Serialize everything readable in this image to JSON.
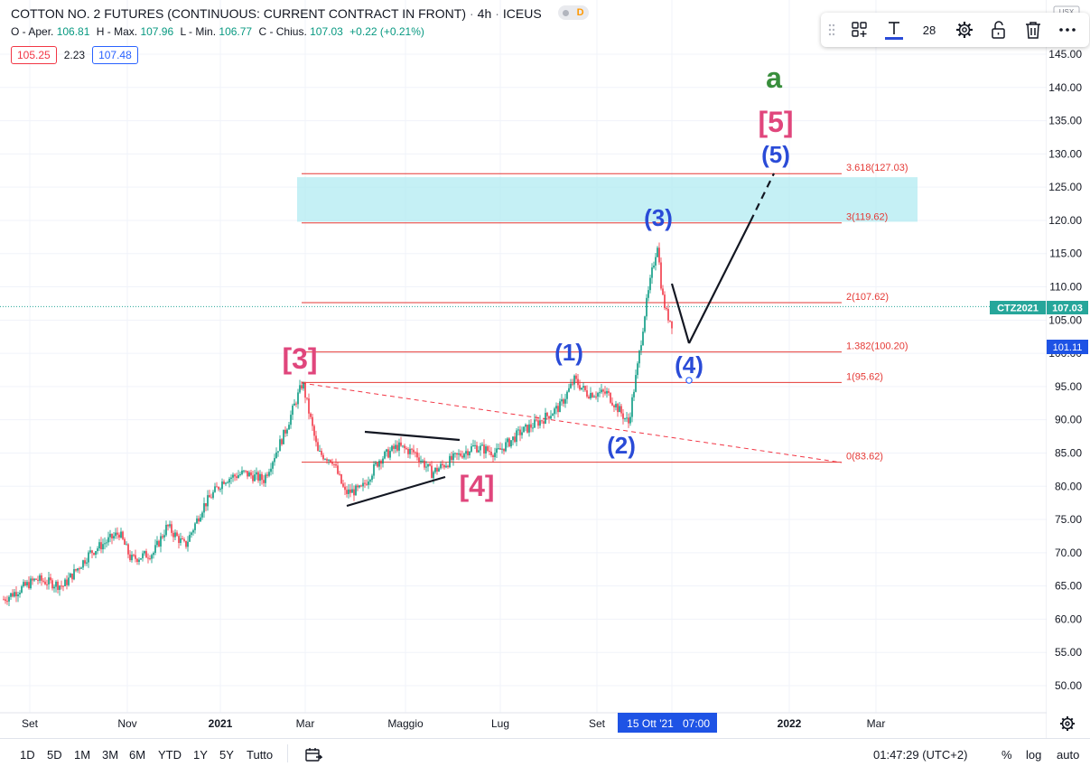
{
  "header": {
    "title": "COTTON NO. 2 FUTURES (CONTINUOUS: CURRENT CONTRACT IN FRONT)",
    "interval": "4h",
    "exchange": "ICEUS",
    "badge": "D"
  },
  "ohlc": {
    "open_label": "O - Aper.",
    "open": "106.81",
    "high_label": "H - Max.",
    "high": "107.96",
    "low_label": "L - Min.",
    "low": "106.77",
    "close_label": "C - Chius.",
    "close": "107.03",
    "change": "+0.22 (+0.21%)"
  },
  "quote": {
    "bid": "105.25",
    "spread": "2.23",
    "ask": "107.48"
  },
  "toolbar": {
    "font_size": "28"
  },
  "price_axis": {
    "currency": "USX",
    "ticks": [
      "145.00",
      "140.00",
      "135.00",
      "130.00",
      "125.00",
      "120.00",
      "115.00",
      "110.00",
      "105.00",
      "100.00",
      "95.00",
      "90.00",
      "85.00",
      "80.00",
      "75.00",
      "70.00",
      "65.00",
      "60.00",
      "55.00",
      "50.00"
    ],
    "symbol_tag": "CTZ2021",
    "last_price": "107.03",
    "crosshair_price": "101.11"
  },
  "time_axis": {
    "ticks": [
      "Set",
      "Nov",
      "2021",
      "Mar",
      "Maggio",
      "Lug",
      "Set",
      "Mar"
    ],
    "year_tick": "2022",
    "crosshair_date": "15 Ott '21",
    "crosshair_time": "07:00"
  },
  "fib_levels": [
    {
      "label": "3.618(127.03)",
      "price": 127.03
    },
    {
      "label": "3(119.62)",
      "price": 119.62
    },
    {
      "label": "2(107.62)",
      "price": 107.62
    },
    {
      "label": "1.382(100.20)",
      "price": 100.2
    },
    {
      "label": "1(95.62)",
      "price": 95.62
    },
    {
      "label": "0(83.62)",
      "price": 83.62
    }
  ],
  "wave_labels": {
    "primary_a": "a",
    "w3": "[3]",
    "w4": "[4]",
    "w5": "[5]",
    "i1": "(1)",
    "i2": "(2)",
    "i3": "(3)",
    "i4": "(4)",
    "i5": "(5)"
  },
  "colors": {
    "up": "#089981",
    "down": "#f23645",
    "fib": "#e53935",
    "wave_primary": "#e0467c",
    "wave_intermediate": "#2a4bd7",
    "wave_a": "#388e3c",
    "zone": "#b2ebf2",
    "last_price": "#26a69a",
    "accent": "#2962ff"
  },
  "bottom_bar": {
    "timeframes": [
      "1D",
      "5D",
      "1M",
      "3M",
      "6M",
      "YTD",
      "1Y",
      "5Y",
      "Tutto"
    ],
    "clock": "01:47:29 (UTC+2)",
    "percent": "%",
    "log": "log",
    "auto": "auto"
  }
}
